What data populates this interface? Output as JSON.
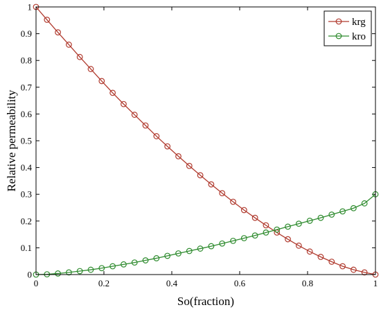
{
  "chart_data": {
    "type": "line",
    "title": "",
    "xlabel": "So(fraction)",
    "ylabel": "Relative permeability",
    "xlim": [
      0,
      1
    ],
    "ylim": [
      0,
      1
    ],
    "x_ticks": [
      "0",
      "0.2",
      "0.4",
      "0.6",
      "0.8",
      "1"
    ],
    "y_ticks": [
      "0",
      "0.1",
      "0.2",
      "0.3",
      "0.4",
      "0.5",
      "0.6",
      "0.7",
      "0.8",
      "0.9",
      "1"
    ],
    "grid": false,
    "legend_position": "top-right",
    "marker": "circle",
    "x": [
      0,
      0.0323,
      0.0645,
      0.0968,
      0.129,
      0.1613,
      0.1935,
      0.2258,
      0.2581,
      0.2903,
      0.3226,
      0.3548,
      0.3871,
      0.4194,
      0.4516,
      0.4839,
      0.5161,
      0.5484,
      0.5806,
      0.6129,
      0.6452,
      0.6774,
      0.7097,
      0.7419,
      0.7742,
      0.8065,
      0.8387,
      0.871,
      0.9032,
      0.9355,
      0.9677,
      1
    ],
    "series": [
      {
        "name": "krg",
        "color": "#b03a2e",
        "values": [
          1.0,
          0.952,
          0.905,
          0.859,
          0.813,
          0.768,
          0.723,
          0.679,
          0.637,
          0.597,
          0.557,
          0.517,
          0.479,
          0.442,
          0.406,
          0.371,
          0.337,
          0.304,
          0.272,
          0.241,
          0.212,
          0.184,
          0.157,
          0.132,
          0.108,
          0.086,
          0.066,
          0.048,
          0.031,
          0.018,
          0.008,
          0.0
        ]
      },
      {
        "name": "kro",
        "color": "#2e8b2e",
        "values": [
          0.0,
          0.001,
          0.004,
          0.008,
          0.013,
          0.018,
          0.024,
          0.031,
          0.038,
          0.045,
          0.053,
          0.061,
          0.07,
          0.079,
          0.088,
          0.097,
          0.106,
          0.116,
          0.126,
          0.136,
          0.146,
          0.157,
          0.168,
          0.179,
          0.19,
          0.201,
          0.212,
          0.224,
          0.236,
          0.248,
          0.266,
          0.3
        ]
      }
    ]
  }
}
